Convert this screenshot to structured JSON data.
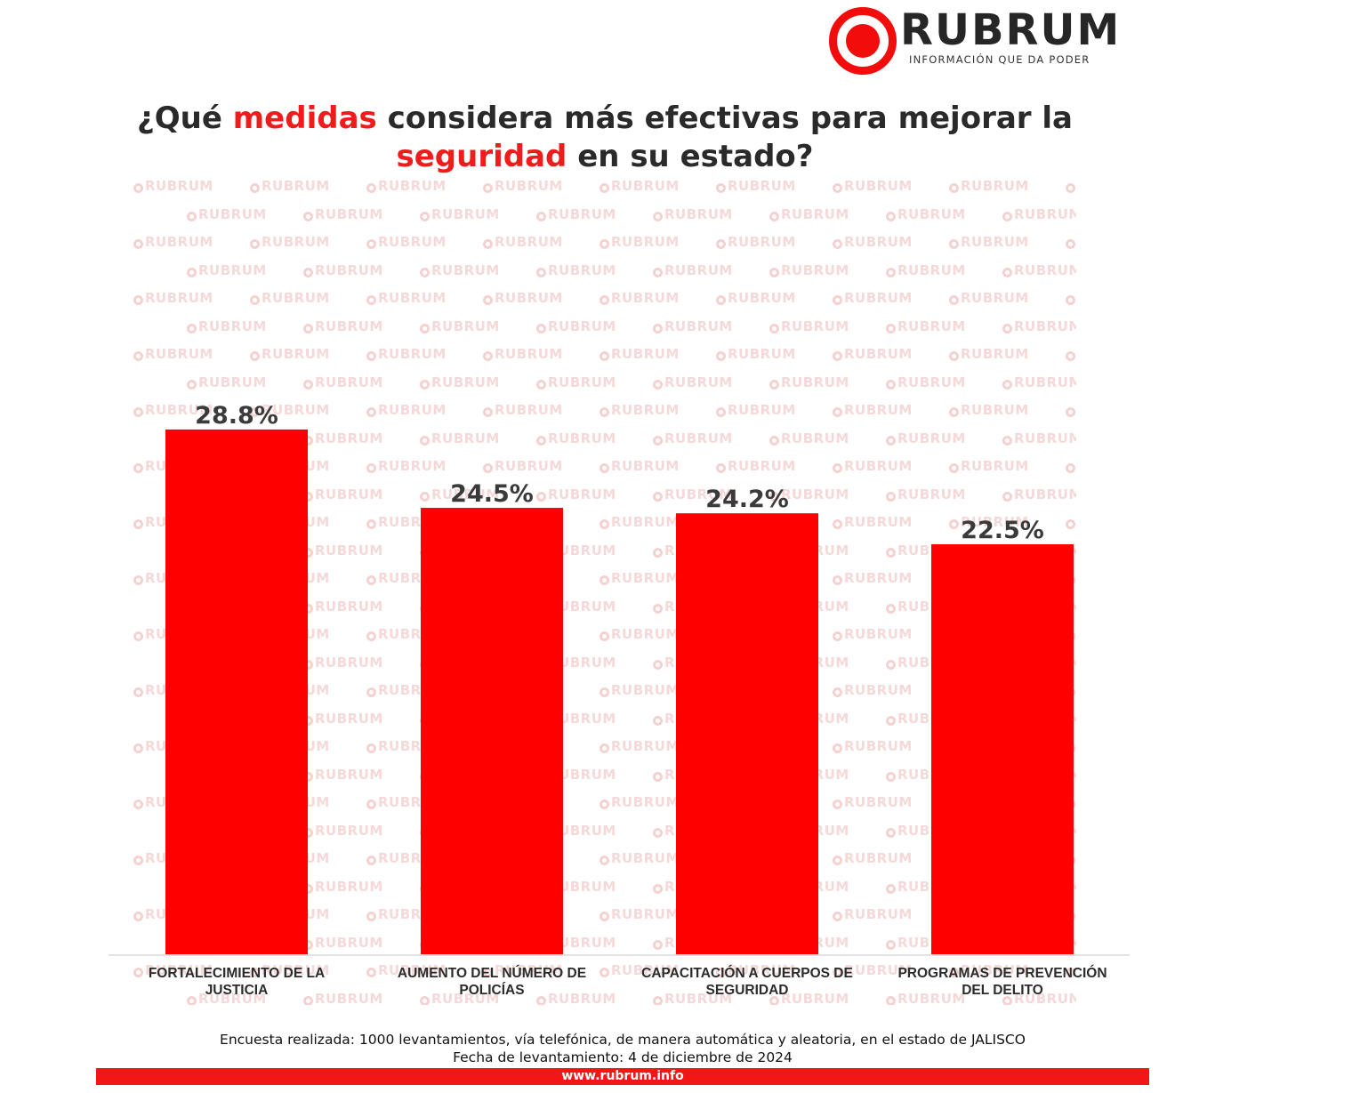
{
  "brand": {
    "name": "RUBRUM",
    "tagline": "INFORMACIÓN QUE DA PODER",
    "watermark": "RUBRUM",
    "accent": "#f20c0c"
  },
  "title": {
    "part1": "¿Qué ",
    "hl1": "medidas",
    "part2": " considera más efectivas para mejorar la",
    "hl2": "seguridad",
    "part3": " en su estado?"
  },
  "chart_data": {
    "type": "bar",
    "title": "¿Qué medidas considera más efectivas para mejorar la seguridad en su estado?",
    "categories": [
      [
        "FORTALECIMIENTO DE LA",
        "JUSTICIA"
      ],
      [
        "AUMENTO DEL NÚMERO DE",
        "POLICÍAS"
      ],
      [
        "CAPACITACIÓN A CUERPOS DE",
        "SEGURIDAD"
      ],
      [
        "PROGRAMAS DE PREVENCIÓN",
        "DEL DELITO"
      ]
    ],
    "values": [
      28.8,
      24.5,
      24.2,
      22.5
    ],
    "value_labels": [
      "28.8%",
      "24.5%",
      "24.2%",
      "22.5%"
    ],
    "bar_color": "#ff0000",
    "ylim": [
      0,
      34.8
    ],
    "grid": false,
    "legend": "none"
  },
  "footer": {
    "line1": "Encuesta realizada: 1000 levantamientos, vía telefónica, de manera automática y aleatoria, en el estado de JALISCO",
    "line2": "Fecha de levantamiento: 4 de diciembre de 2024",
    "url": "www.rubrum.info"
  }
}
